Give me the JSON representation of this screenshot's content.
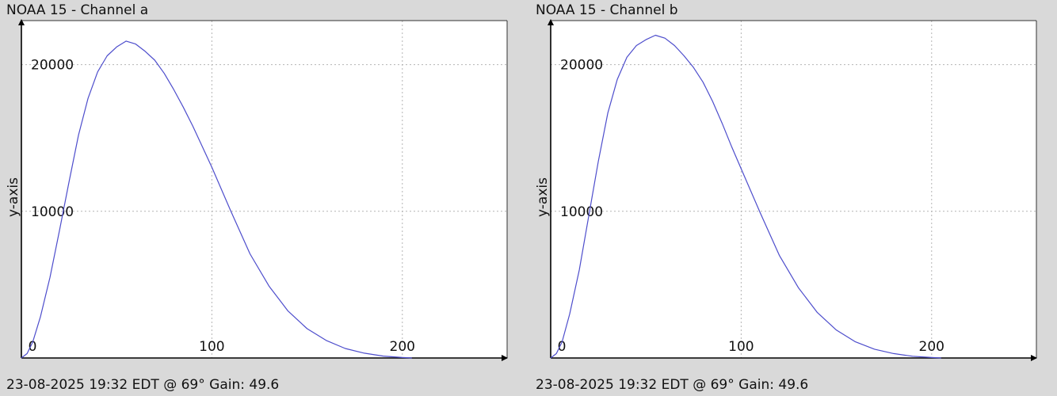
{
  "chart_data": [
    {
      "type": "line",
      "title": "NOAA 15 - Channel a",
      "footer": "23-08-2025 19:32 EDT @ 69° Gain: 49.6",
      "xlabel": "",
      "ylabel": "y-axis",
      "xlim": [
        0,
        255
      ],
      "ylim": [
        0,
        23000
      ],
      "xticks": [
        0,
        100,
        200
      ],
      "yticks": [
        10000,
        20000
      ],
      "x_tick_labels": [
        "0",
        "100",
        "200"
      ],
      "y_tick_labels": [
        "10000",
        "20000"
      ],
      "grid": true,
      "line_color": "#4d4dcc",
      "series": [
        {
          "x": [
            0,
            3,
            6,
            10,
            15,
            20,
            25,
            30,
            35,
            40,
            45,
            50,
            55,
            60,
            65,
            70,
            75,
            80,
            85,
            90,
            95,
            100,
            110,
            120,
            130,
            140,
            150,
            160,
            170,
            180,
            190,
            200,
            205
          ],
          "values": [
            0,
            300,
            1100,
            2800,
            5500,
            8700,
            12000,
            15200,
            17700,
            19500,
            20600,
            21200,
            21600,
            21400,
            20900,
            20300,
            19400,
            18300,
            17100,
            15800,
            14400,
            13000,
            10000,
            7100,
            4900,
            3200,
            2000,
            1200,
            650,
            330,
            130,
            30,
            0
          ]
        }
      ]
    },
    {
      "type": "line",
      "title": "NOAA 15 - Channel b",
      "footer": "23-08-2025 19:32 EDT @ 69° Gain: 49.6",
      "xlabel": "",
      "ylabel": "y-axis",
      "xlim": [
        0,
        255
      ],
      "ylim": [
        0,
        23000
      ],
      "xticks": [
        0,
        100,
        200
      ],
      "yticks": [
        10000,
        20000
      ],
      "x_tick_labels": [
        "0",
        "100",
        "200"
      ],
      "y_tick_labels": [
        "10000",
        "20000"
      ],
      "grid": true,
      "line_color": "#4d4dcc",
      "series": [
        {
          "x": [
            0,
            3,
            6,
            10,
            15,
            20,
            25,
            30,
            35,
            40,
            45,
            50,
            55,
            60,
            65,
            70,
            75,
            80,
            85,
            90,
            95,
            100,
            110,
            120,
            130,
            140,
            150,
            160,
            170,
            180,
            190,
            200,
            205
          ],
          "values": [
            0,
            300,
            1100,
            3000,
            6000,
            9700,
            13400,
            16700,
            19000,
            20500,
            21300,
            21700,
            22000,
            21800,
            21300,
            20600,
            19800,
            18800,
            17500,
            16000,
            14400,
            12900,
            9900,
            7000,
            4800,
            3100,
            1900,
            1100,
            600,
            300,
            120,
            30,
            0
          ]
        }
      ]
    }
  ]
}
